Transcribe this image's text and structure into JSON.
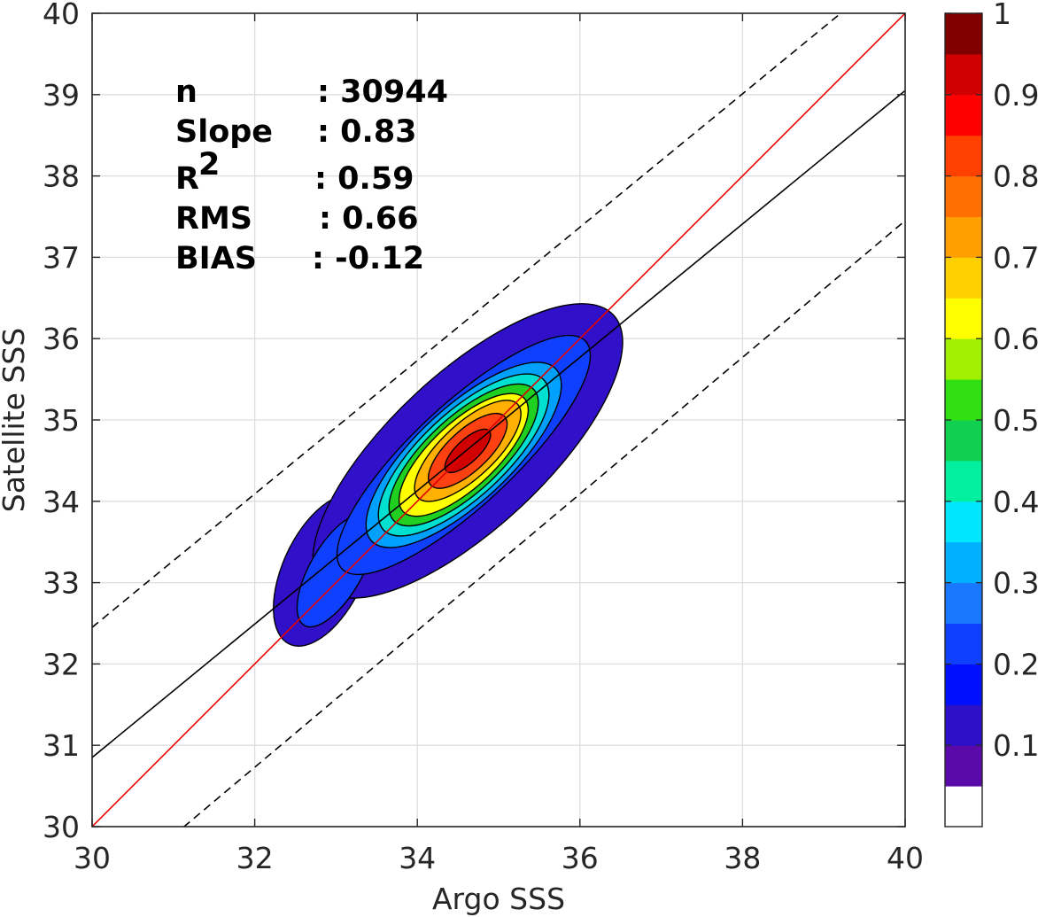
{
  "chart_data": {
    "type": "contour",
    "xlabel": "Argo SSS",
    "ylabel": "Satellite SSS",
    "xlim": [
      30,
      40
    ],
    "ylim": [
      30,
      40
    ],
    "xticks": [
      "30",
      "32",
      "34",
      "36",
      "38",
      "40"
    ],
    "yticks": [
      "30",
      "31",
      "32",
      "33",
      "34",
      "35",
      "36",
      "37",
      "38",
      "39",
      "40"
    ],
    "grid": true,
    "stats": [
      {
        "label": "n",
        "value": ": 30944"
      },
      {
        "label": "Slope",
        "value": ": 0.83"
      },
      {
        "label": "R",
        "sup": "2",
        "value": ": 0.59"
      },
      {
        "label": "RMS",
        "value": ": 0.66"
      },
      {
        "label": "BIAS",
        "value": ": -0.12"
      }
    ],
    "lines": [
      {
        "name": "one-to-one",
        "color": "#e00000",
        "style": "solid",
        "x": [
          30,
          40
        ],
        "y": [
          30,
          40
        ]
      },
      {
        "name": "regression",
        "color": "#000000",
        "style": "solid",
        "x": [
          30,
          40
        ],
        "y": [
          30.85,
          39.05
        ]
      },
      {
        "name": "upper-bound",
        "color": "#000000",
        "style": "dashed",
        "x": [
          30,
          40
        ],
        "y": [
          32.45,
          40.65
        ]
      },
      {
        "name": "lower-bound",
        "color": "#000000",
        "style": "dashed",
        "x": [
          30,
          40
        ],
        "y": [
          29.05,
          37.45
        ]
      }
    ],
    "density_contours": {
      "center": [
        34.62,
        34.62
      ],
      "angle_deg": 43,
      "levels": [
        {
          "level": 0.05,
          "color": "#3010c8",
          "ax": 2.45,
          "ay": 0.95
        },
        {
          "level": 0.2,
          "color": "#1040ff",
          "ax": 2.05,
          "ay": 0.62
        },
        {
          "level": 0.3,
          "color": "#00a0ff",
          "ax": 1.55,
          "ay": 0.58
        },
        {
          "level": 0.4,
          "color": "#00e0d0",
          "ax": 1.35,
          "ay": 0.52
        },
        {
          "level": 0.5,
          "color": "#20d020",
          "ax": 1.18,
          "ay": 0.46
        },
        {
          "level": 0.6,
          "color": "#ffff00",
          "ax": 1.02,
          "ay": 0.4
        },
        {
          "level": 0.7,
          "color": "#ffb000",
          "ax": 0.84,
          "ay": 0.33
        },
        {
          "level": 0.8,
          "color": "#ff4010",
          "ax": 0.62,
          "ay": 0.25
        },
        {
          "level": 0.9,
          "color": "#d00000",
          "ax": 0.36,
          "ay": 0.14
        }
      ],
      "outer_lobe": {
        "center": [
          32.85,
          33.15
        ],
        "angle_deg": 65,
        "ax": 1.0,
        "ay": 0.5,
        "color": "#3010c8"
      },
      "inner_lobe": {
        "center": [
          33.0,
          33.15
        ],
        "angle_deg": 60,
        "ax": 0.78,
        "ay": 0.32,
        "color": "#1040ff"
      }
    },
    "colorbar": {
      "ticks": [
        "0.1",
        "0.2",
        "0.3",
        "0.4",
        "0.5",
        "0.6",
        "0.7",
        "0.8",
        "0.9",
        "1"
      ],
      "tick_values": [
        0.1,
        0.2,
        0.3,
        0.4,
        0.5,
        0.6,
        0.7,
        0.8,
        0.9,
        1.0
      ],
      "range": [
        0,
        1
      ],
      "colors": [
        "#ffffff",
        "#5a0aa8",
        "#2d10c8",
        "#0010ff",
        "#1040ff",
        "#1a78ff",
        "#00b0ff",
        "#00e6ff",
        "#00f0a0",
        "#10d050",
        "#30e010",
        "#a0f000",
        "#ffff00",
        "#ffd000",
        "#ffa000",
        "#ff7000",
        "#ff4000",
        "#ff0000",
        "#d00000",
        "#800000"
      ]
    }
  }
}
